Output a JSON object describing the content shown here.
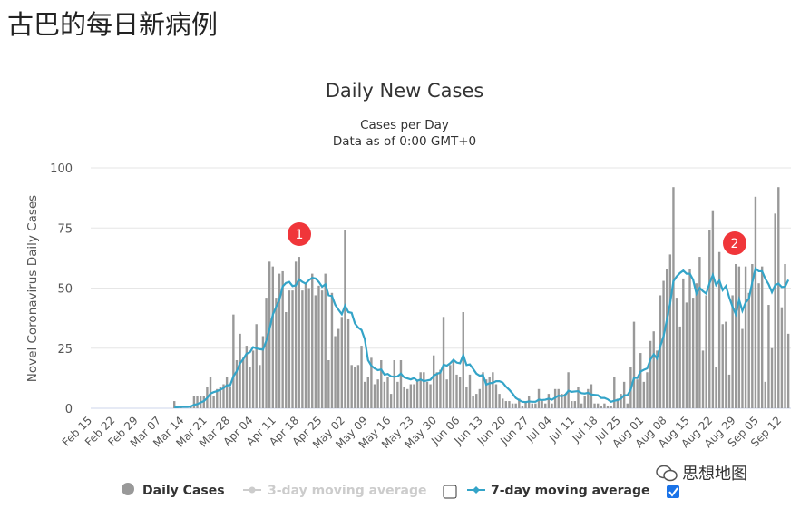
{
  "page_title": "古巴的每日新病例",
  "watermark": "思想地图",
  "chart_data": {
    "type": "bar",
    "title": "Daily New Cases",
    "subtitle": [
      "Cases per Day",
      "Data as of 0:00 GMT+0"
    ],
    "ylabel": "Novel Coronavirus Daily Cases",
    "ylim": [
      0,
      100
    ],
    "yticks": [
      0,
      25,
      50,
      75,
      100
    ],
    "grid": true,
    "xticks": [
      "Feb 15",
      "Feb 22",
      "Feb 29",
      "Mar 07",
      "Mar 14",
      "Mar 21",
      "Mar 28",
      "Apr 04",
      "Apr 11",
      "Apr 18",
      "Apr 25",
      "May 02",
      "May 09",
      "May 16",
      "May 23",
      "May 30",
      "Jun 06",
      "Jun 13",
      "Jun 20",
      "Jun 27",
      "Jul 04",
      "Jul 11",
      "Jul 18",
      "Jul 25",
      "Aug 01",
      "Aug 08",
      "Aug 15",
      "Aug 22",
      "Aug 29",
      "Sep 05",
      "Sep 12"
    ],
    "daily_cases_by_month": {
      "Feb (from 15)": [
        0,
        0,
        0,
        0,
        0,
        0,
        0,
        0,
        0,
        0,
        0,
        0,
        0,
        0,
        0
      ],
      "Mar": [
        0,
        0,
        0,
        0,
        0,
        0,
        0,
        0,
        0,
        0,
        3,
        0,
        1,
        0,
        0,
        1,
        5,
        5,
        5,
        5,
        9,
        13,
        5,
        8,
        9,
        10,
        13,
        9,
        39,
        20,
        31
      ],
      "Apr": [
        21,
        26,
        17,
        24,
        35,
        18,
        30,
        46,
        61,
        59,
        46,
        56,
        57,
        40,
        49,
        49,
        61,
        63,
        49,
        52,
        50,
        56,
        47,
        51,
        49,
        56,
        20,
        48,
        30,
        33
      ],
      "May": [
        38,
        74,
        37,
        18,
        17,
        18,
        26,
        11,
        13,
        21,
        10,
        12,
        20,
        11,
        13,
        6,
        20,
        11,
        20,
        9,
        8,
        10,
        10,
        12,
        15,
        15,
        11,
        10,
        22,
        15,
        16
      ],
      "Jun": [
        38,
        12,
        18,
        20,
        14,
        13,
        40,
        9,
        14,
        5,
        6,
        8,
        15,
        12,
        13,
        15,
        10,
        6,
        4,
        3,
        3,
        2,
        2,
        4,
        1,
        3,
        5,
        2,
        2,
        8
      ],
      "Jul": [
        3,
        2,
        6,
        2,
        8,
        8,
        6,
        6,
        15,
        3,
        3,
        9,
        2,
        5,
        8,
        10,
        2,
        2,
        1,
        2,
        1,
        1,
        13,
        4,
        6,
        11,
        2,
        17,
        36,
        12,
        23
      ],
      "Aug": [
        11,
        15,
        28,
        32,
        24,
        47,
        53,
        58,
        64,
        92,
        46,
        34,
        54,
        44,
        58,
        46,
        52,
        63,
        24,
        47,
        74,
        82,
        17,
        65,
        35,
        36,
        14,
        47,
        60,
        59,
        33
      ],
      "Sep": [
        59,
        48,
        60,
        88,
        52,
        59,
        11,
        43,
        25,
        81,
        92,
        42,
        60,
        31
      ]
    },
    "series": [
      {
        "name": "Daily Cases",
        "color": "#999999",
        "visible": true
      },
      {
        "name": "3-day moving average",
        "color": "#cccccc",
        "visible": false
      },
      {
        "name": "7-day moving average",
        "color": "#34a4c8",
        "visible": true
      }
    ],
    "annotations": [
      "1",
      "2"
    ],
    "annotation_color": "#f0363a"
  }
}
